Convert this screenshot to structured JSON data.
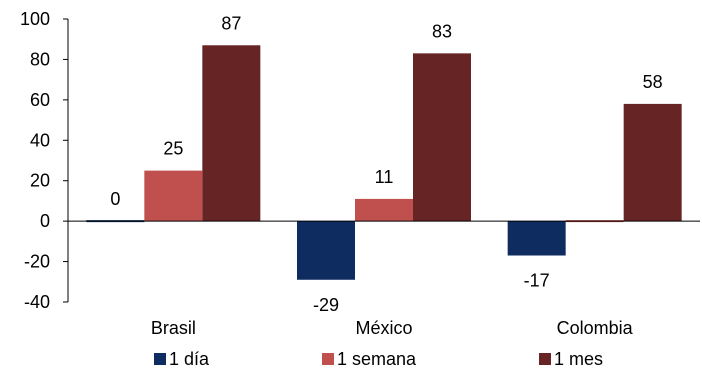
{
  "chart_data": {
    "type": "bar",
    "categories": [
      "Brasil",
      "México",
      "Colombia"
    ],
    "series": [
      {
        "name": "1 día",
        "values": [
          0,
          -29,
          -17
        ],
        "labels": [
          "0",
          "-29",
          "-17"
        ],
        "color": "#0e2c5f"
      },
      {
        "name": "1 semana",
        "values": [
          25,
          11,
          0
        ],
        "labels": [
          "25",
          "11",
          ""
        ],
        "color": "#c0504d"
      },
      {
        "name": "1 mes",
        "values": [
          87,
          83,
          58
        ],
        "labels": [
          "87",
          "83",
          "58"
        ],
        "color": "#672424"
      }
    ],
    "ylim": [
      -40,
      100
    ],
    "yticks": [
      100,
      80,
      60,
      40,
      20,
      0,
      -20,
      -40
    ],
    "title": "",
    "xlabel": "",
    "ylabel": "",
    "grid": false,
    "legend_position": "bottom"
  }
}
